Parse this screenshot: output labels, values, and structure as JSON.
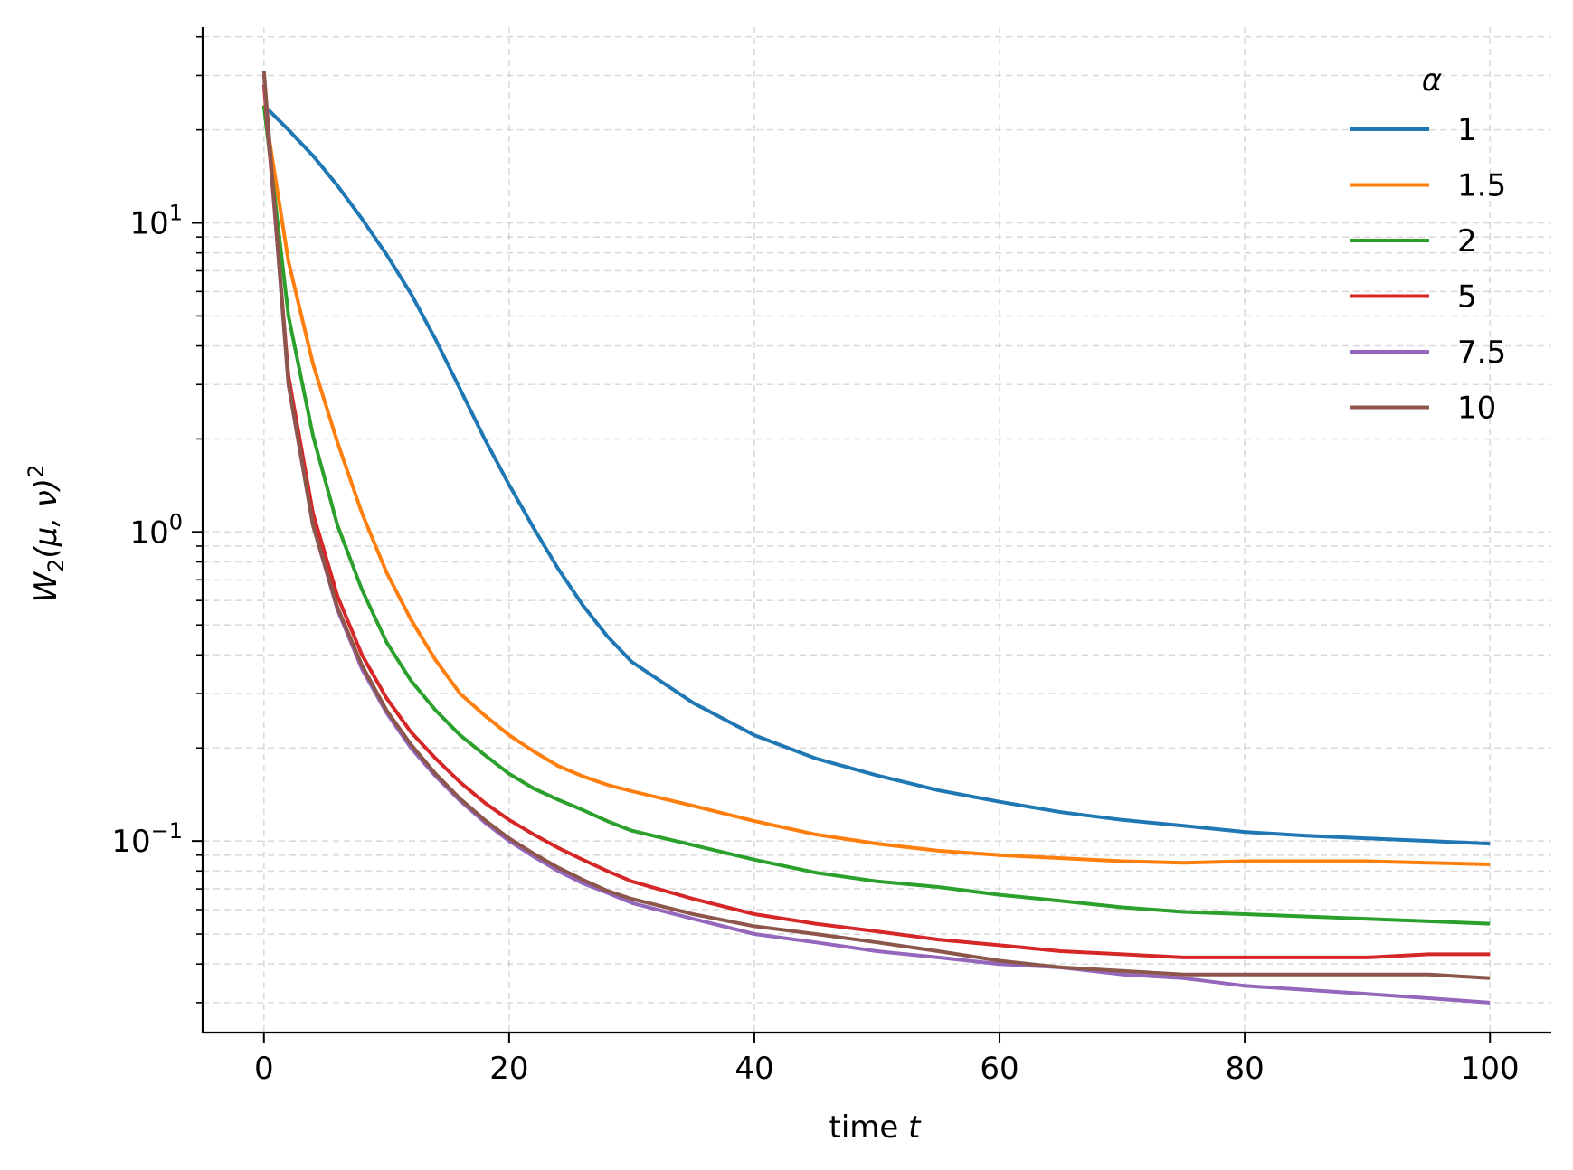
{
  "chart_data": {
    "type": "line",
    "xlabel": "time t",
    "ylabel": "W2(μ, ν)²",
    "yscale": "log",
    "xlim": [
      -5,
      105
    ],
    "ylim": [
      0.024,
      43
    ],
    "xticks": [
      0,
      20,
      40,
      60,
      80,
      100
    ],
    "yticks": [
      {
        "value": 0.1,
        "base": "10",
        "exp": "−1"
      },
      {
        "value": 1,
        "base": "10",
        "exp": "0"
      },
      {
        "value": 10,
        "base": "10",
        "exp": "1"
      }
    ],
    "grid": true,
    "legend": {
      "title": "α",
      "placement": "top-right"
    },
    "x": [
      0,
      2,
      4,
      6,
      8,
      10,
      12,
      14,
      16,
      18,
      20,
      22,
      24,
      26,
      28,
      30,
      35,
      40,
      45,
      50,
      55,
      60,
      65,
      70,
      75,
      80,
      85,
      90,
      95,
      100
    ],
    "series": [
      {
        "name": "1",
        "color": "#1f77b4",
        "values": [
          24,
          20,
          16.5,
          13.2,
          10.3,
          7.9,
          5.9,
          4.2,
          2.9,
          2.0,
          1.42,
          1.03,
          0.76,
          0.58,
          0.46,
          0.38,
          0.28,
          0.22,
          0.185,
          0.163,
          0.146,
          0.134,
          0.124,
          0.117,
          0.112,
          0.107,
          0.104,
          0.102,
          0.1,
          0.098
        ]
      },
      {
        "name": "1.5",
        "color": "#ff7f0e",
        "values": [
          24,
          7.5,
          3.5,
          1.95,
          1.15,
          0.74,
          0.52,
          0.385,
          0.3,
          0.255,
          0.22,
          0.195,
          0.175,
          0.162,
          0.152,
          0.145,
          0.13,
          0.116,
          0.105,
          0.098,
          0.093,
          0.09,
          0.088,
          0.086,
          0.085,
          0.086,
          0.086,
          0.086,
          0.085,
          0.084
        ]
      },
      {
        "name": "2",
        "color": "#2ca02c",
        "values": [
          24,
          5.0,
          2.05,
          1.05,
          0.65,
          0.44,
          0.33,
          0.265,
          0.22,
          0.19,
          0.165,
          0.148,
          0.136,
          0.126,
          0.116,
          0.108,
          0.097,
          0.087,
          0.079,
          0.074,
          0.071,
          0.067,
          0.064,
          0.061,
          0.059,
          0.058,
          0.057,
          0.056,
          0.055,
          0.054
        ]
      },
      {
        "name": "5",
        "color": "#d62728",
        "values": [
          28,
          3.2,
          1.15,
          0.62,
          0.4,
          0.29,
          0.225,
          0.185,
          0.155,
          0.133,
          0.117,
          0.105,
          0.095,
          0.087,
          0.08,
          0.074,
          0.065,
          0.058,
          0.054,
          0.051,
          0.048,
          0.046,
          0.044,
          0.043,
          0.042,
          0.042,
          0.042,
          0.042,
          0.043,
          0.043
        ]
      },
      {
        "name": "7.5",
        "color": "#9467bd",
        "values": [
          30,
          3.0,
          1.05,
          0.56,
          0.36,
          0.26,
          0.2,
          0.162,
          0.135,
          0.115,
          0.1,
          0.089,
          0.08,
          0.073,
          0.068,
          0.063,
          0.056,
          0.05,
          0.047,
          0.044,
          0.042,
          0.04,
          0.039,
          0.037,
          0.036,
          0.034,
          0.033,
          0.032,
          0.031,
          0.03
        ]
      },
      {
        "name": "10",
        "color": "#8c564b",
        "values": [
          31,
          3.0,
          1.05,
          0.57,
          0.37,
          0.265,
          0.205,
          0.165,
          0.137,
          0.117,
          0.102,
          0.091,
          0.082,
          0.075,
          0.069,
          0.065,
          0.058,
          0.053,
          0.05,
          0.047,
          0.044,
          0.041,
          0.039,
          0.038,
          0.037,
          0.037,
          0.037,
          0.037,
          0.037,
          0.036
        ]
      }
    ]
  }
}
